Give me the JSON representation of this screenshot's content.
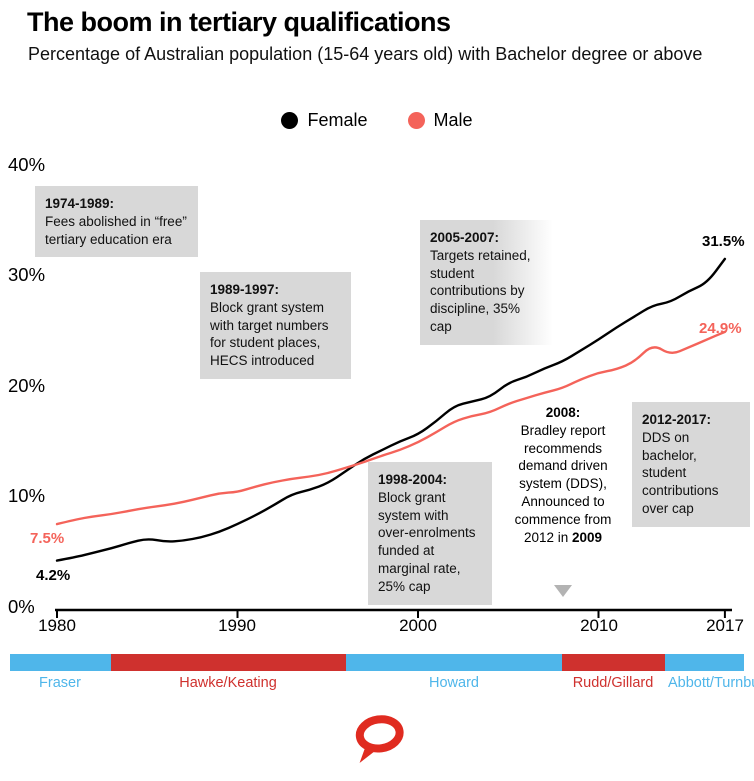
{
  "header": {
    "title": "The boom in tertiary qualifications",
    "subtitle": "Percentage of Australian population (15-64 years old) with Bachelor degree or above"
  },
  "legend": [
    {
      "label": "Female",
      "color": "#000000"
    },
    {
      "label": "Male",
      "color": "#f4635a"
    }
  ],
  "chart_data": {
    "type": "line",
    "title": "The boom in tertiary qualifications",
    "subtitle": "Percentage of Australian population (15-64 years old) with Bachelor degree or above",
    "x_range": [
      1980,
      2017
    ],
    "y_range": [
      0,
      40
    ],
    "grid": false,
    "legend_position": "top-center",
    "y_tick_labels": [
      "40%",
      "30%",
      "20%",
      "10%",
      "0%"
    ],
    "x_tick_labels": [
      "1980",
      "1990",
      "2000",
      "2010",
      "2017"
    ],
    "x_tick_years": [
      1980,
      1990,
      2000,
      2010,
      2017
    ],
    "years": [
      1980,
      1981,
      1982,
      1983,
      1984,
      1985,
      1986,
      1987,
      1988,
      1989,
      1990,
      1991,
      1992,
      1993,
      1994,
      1995,
      1996,
      1997,
      1998,
      1999,
      2000,
      2001,
      2002,
      2003,
      2004,
      2005,
      2006,
      2007,
      2008,
      2009,
      2010,
      2011,
      2012,
      2013,
      2014,
      2015,
      2016,
      2017
    ],
    "series": [
      {
        "name": "Female",
        "color": "#000000",
        "values": [
          4.2,
          4.5,
          4.9,
          5.3,
          5.8,
          6.2,
          5.9,
          6.0,
          6.3,
          6.8,
          7.5,
          8.3,
          9.2,
          10.2,
          10.6,
          11.2,
          12.3,
          13.4,
          14.2,
          15.0,
          15.6,
          16.8,
          18.2,
          18.6,
          19.0,
          20.3,
          20.8,
          21.6,
          22.2,
          23.2,
          24.2,
          25.3,
          26.3,
          27.3,
          27.6,
          28.6,
          29.3,
          31.5
        ]
      },
      {
        "name": "Male",
        "color": "#f4635a",
        "values": [
          7.5,
          7.9,
          8.2,
          8.4,
          8.7,
          9.0,
          9.2,
          9.5,
          9.9,
          10.3,
          10.4,
          10.9,
          11.3,
          11.6,
          11.8,
          12.1,
          12.6,
          13.1,
          13.7,
          14.2,
          14.9,
          15.8,
          16.8,
          17.3,
          17.6,
          18.4,
          18.9,
          19.4,
          19.8,
          20.6,
          21.2,
          21.5,
          22.2,
          23.8,
          22.8,
          23.5,
          24.2,
          24.9
        ]
      }
    ]
  },
  "end_labels": {
    "female_end": "31.5%",
    "male_end": "24.9%",
    "male_start": "7.5%",
    "female_start": "4.2%"
  },
  "annotations": {
    "callouts": [
      {
        "header": "1974-1989:",
        "body": "Fees abolished in “free” tertiary education era"
      },
      {
        "header": "1989-1997:",
        "body": "Block grant system with target numbers for student places, HECS introduced"
      },
      {
        "header": "2005-2007:",
        "body": "Targets retained, student contributions by discipline, 35% cap"
      },
      {
        "header": "1998-2004:",
        "body": "Block grant system with over-enrolments funded at marginal rate, 25% cap"
      },
      {
        "header": "2012-2017:",
        "body": "DDS on bachelor, student contributions over cap"
      }
    ],
    "bradley": {
      "header": "2008:",
      "body": "Bradley report recommends demand driven system (DDS), Announced to commence from 2012 in ",
      "year": "2009"
    }
  },
  "eras": [
    {
      "label": "Fraser",
      "color": "#4fb6ea"
    },
    {
      "label": "Hawke/Keating",
      "color": "#cf312e"
    },
    {
      "label": "Howard",
      "color": "#4fb6ea"
    },
    {
      "label": "Rudd/Gillard",
      "color": "#cf312e"
    },
    {
      "label": "Abbott/Turnbull",
      "color": "#4fb6ea"
    }
  ],
  "logo": {
    "name": "The Conversation",
    "color": "#e02b20"
  }
}
